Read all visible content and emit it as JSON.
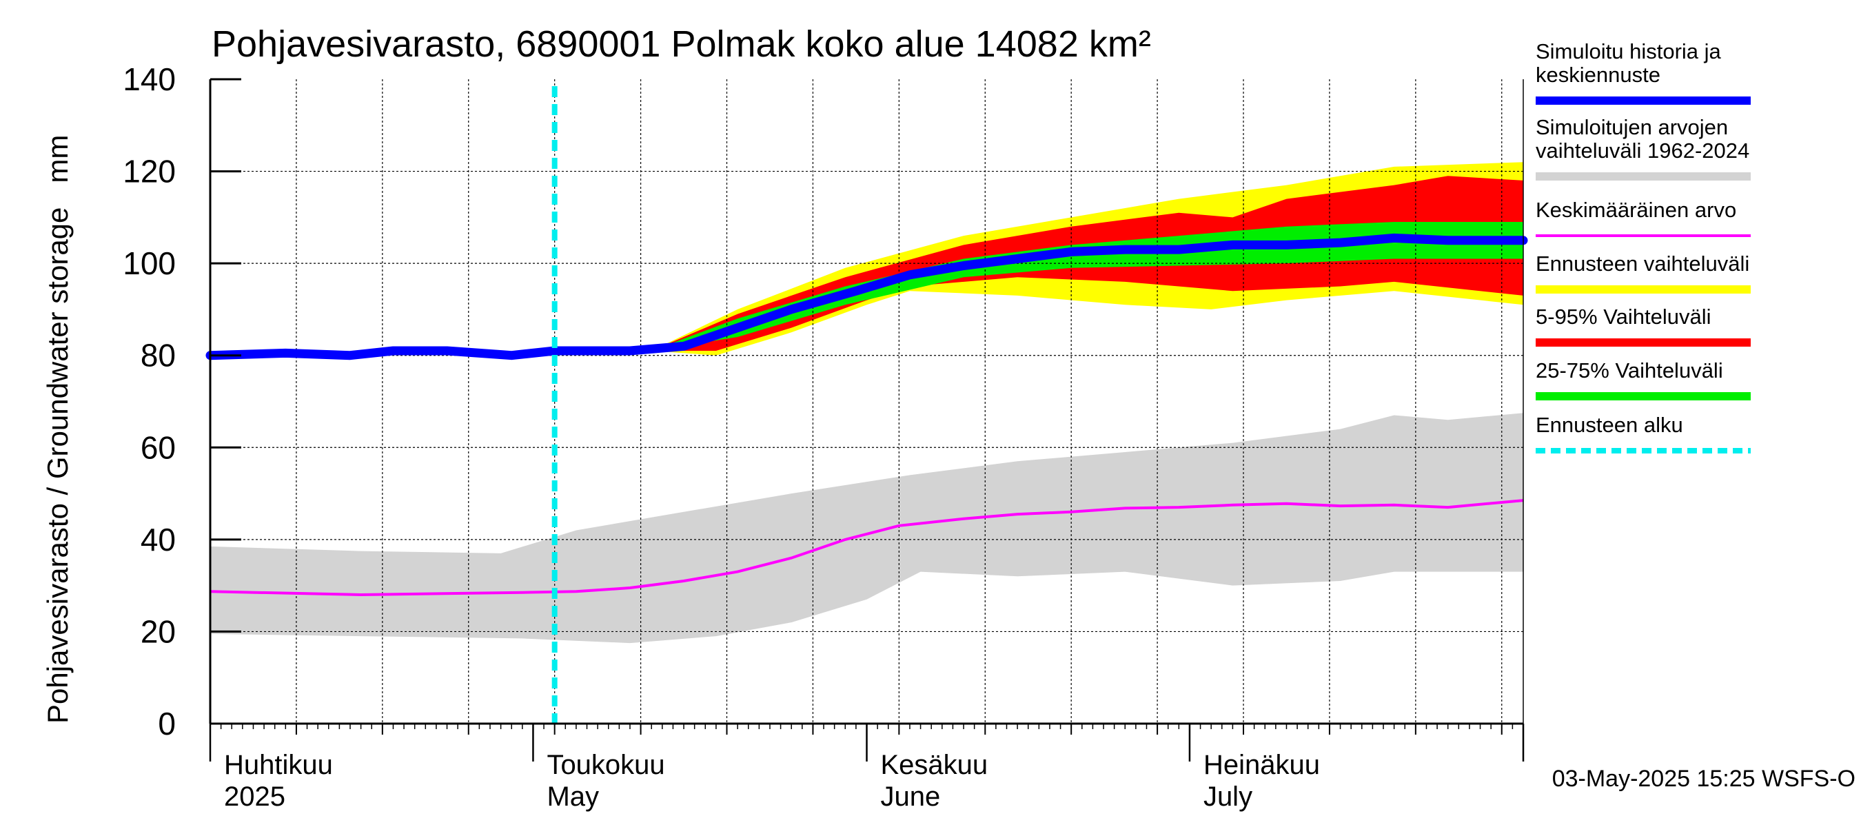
{
  "chart_data": {
    "type": "area",
    "title": "Pohjavesivarasto, 6890001 Polmak koko alue 14082 km²",
    "ylabel": "Pohjavesivarasto / Groundwater storage   mm",
    "ylim": [
      0,
      140
    ],
    "yticks": [
      0,
      20,
      40,
      60,
      80,
      100,
      120,
      140
    ],
    "ytick_labels": [
      "0",
      "20",
      "40",
      "60",
      "80",
      "100",
      "120",
      "140"
    ],
    "x_start_date": "2025-04-01",
    "x_end_date": "2025-08-01",
    "month_labels": [
      {
        "fi": "Huhtikuu",
        "en": "2025",
        "date": "2025-04-01"
      },
      {
        "fi": "Toukokuu",
        "en": "May",
        "date": "2025-05-01"
      },
      {
        "fi": "Kesäkuu",
        "en": "June",
        "date": "2025-06-01"
      },
      {
        "fi": "Heinäkuu",
        "en": "July",
        "date": "2025-07-01"
      }
    ],
    "forecast_start": "2025-05-03",
    "grid": true,
    "legend_placement": "right",
    "colors": {
      "history": "#0000ff",
      "hist_range": "#d3d3d3",
      "mean": "#ff00ff",
      "forecast_range": "#ffff00",
      "p5_95": "#ff0000",
      "p25_75": "#00ee00",
      "forecast_start": "#00eeee"
    },
    "legend": [
      {
        "key": "history",
        "lines": [
          "Simuloitu historia ja",
          "keskiennuste"
        ]
      },
      {
        "key": "hist_range",
        "lines": [
          "Simuloitujen arvojen",
          "vaihteluväli 1962-2024"
        ]
      },
      {
        "key": "mean",
        "lines": [
          "Keskimääräinen arvo"
        ]
      },
      {
        "key": "forecast_range",
        "lines": [
          "Ennusteen vaihteluväli"
        ]
      },
      {
        "key": "p5_95",
        "lines": [
          "5-95% Vaihteluväli"
        ]
      },
      {
        "key": "p25_75",
        "lines": [
          "25-75% Vaihteluväli"
        ]
      },
      {
        "key": "forecast_start",
        "lines": [
          "Ennusteen alku"
        ]
      }
    ],
    "series": [
      {
        "name": "Simuloitu historia ja keskiennuste",
        "key": "history",
        "points": [
          [
            "2025-04-01",
            80
          ],
          [
            "2025-04-08",
            80.5
          ],
          [
            "2025-04-14",
            80
          ],
          [
            "2025-04-18",
            81
          ],
          [
            "2025-04-23",
            81
          ],
          [
            "2025-04-29",
            80
          ],
          [
            "2025-05-03",
            81
          ],
          [
            "2025-05-10",
            81
          ],
          [
            "2025-05-15",
            82
          ],
          [
            "2025-05-20",
            86
          ],
          [
            "2025-05-25",
            90
          ],
          [
            "2025-05-31",
            94
          ],
          [
            "2025-06-05",
            97.5
          ],
          [
            "2025-06-10",
            99.5
          ],
          [
            "2025-06-15",
            101
          ],
          [
            "2025-06-20",
            102.5
          ],
          [
            "2025-06-25",
            103
          ],
          [
            "2025-06-30",
            103
          ],
          [
            "2025-07-05",
            104
          ],
          [
            "2025-07-10",
            104
          ],
          [
            "2025-07-15",
            104.5
          ],
          [
            "2025-07-20",
            105.5
          ],
          [
            "2025-07-25",
            105
          ],
          [
            "2025-08-01",
            105
          ]
        ]
      },
      {
        "name": "Keskimääräinen arvo",
        "key": "mean",
        "points": [
          [
            "2025-04-01",
            28.7
          ],
          [
            "2025-04-15",
            28
          ],
          [
            "2025-04-30",
            28.5
          ],
          [
            "2025-05-05",
            28.7
          ],
          [
            "2025-05-10",
            29.5
          ],
          [
            "2025-05-15",
            31
          ],
          [
            "2025-05-20",
            33
          ],
          [
            "2025-05-25",
            36
          ],
          [
            "2025-05-30",
            40
          ],
          [
            "2025-06-04",
            43
          ],
          [
            "2025-06-10",
            44.5
          ],
          [
            "2025-06-15",
            45.5
          ],
          [
            "2025-06-20",
            46
          ],
          [
            "2025-06-25",
            46.8
          ],
          [
            "2025-06-30",
            47
          ],
          [
            "2025-07-05",
            47.5
          ],
          [
            "2025-07-10",
            47.8
          ],
          [
            "2025-07-15",
            47.3
          ],
          [
            "2025-07-20",
            47.5
          ],
          [
            "2025-07-25",
            47
          ],
          [
            "2025-08-01",
            48.5
          ]
        ]
      }
    ],
    "bands": [
      {
        "name": "Simuloitujen arvojen vaihteluväli 1962-2024",
        "key": "hist_range",
        "upper": [
          [
            "2025-04-01",
            38.5
          ],
          [
            "2025-04-15",
            37.5
          ],
          [
            "2025-04-28",
            37
          ],
          [
            "2025-05-05",
            42
          ],
          [
            "2025-05-15",
            46
          ],
          [
            "2025-05-25",
            50
          ],
          [
            "2025-06-05",
            54
          ],
          [
            "2025-06-15",
            57
          ],
          [
            "2025-06-25",
            59
          ],
          [
            "2025-07-05",
            61
          ],
          [
            "2025-07-15",
            64
          ],
          [
            "2025-07-20",
            67
          ],
          [
            "2025-07-25",
            66
          ],
          [
            "2025-08-01",
            67.5
          ]
        ],
        "lower": [
          [
            "2025-04-01",
            19.5
          ],
          [
            "2025-04-15",
            19
          ],
          [
            "2025-04-30",
            18.5
          ],
          [
            "2025-05-10",
            17.5
          ],
          [
            "2025-05-18",
            19
          ],
          [
            "2025-05-25",
            22
          ],
          [
            "2025-06-01",
            27
          ],
          [
            "2025-06-06",
            33
          ],
          [
            "2025-06-15",
            32
          ],
          [
            "2025-06-25",
            33
          ],
          [
            "2025-07-05",
            30
          ],
          [
            "2025-07-15",
            31
          ],
          [
            "2025-07-20",
            33
          ],
          [
            "2025-08-01",
            33
          ]
        ]
      },
      {
        "name": "Ennusteen vaihteluväli",
        "key": "forecast_range",
        "upper": [
          [
            "2025-05-12",
            81
          ],
          [
            "2025-05-20",
            90
          ],
          [
            "2025-05-30",
            99
          ],
          [
            "2025-06-10",
            106
          ],
          [
            "2025-06-20",
            110
          ],
          [
            "2025-06-30",
            114
          ],
          [
            "2025-07-10",
            117
          ],
          [
            "2025-07-20",
            121
          ],
          [
            "2025-08-01",
            122
          ]
        ],
        "lower": [
          [
            "2025-05-12",
            81
          ],
          [
            "2025-05-18",
            80
          ],
          [
            "2025-05-25",
            85
          ],
          [
            "2025-06-01",
            91
          ],
          [
            "2025-06-05",
            94
          ],
          [
            "2025-06-15",
            93
          ],
          [
            "2025-06-25",
            91
          ],
          [
            "2025-07-03",
            90
          ],
          [
            "2025-07-10",
            92
          ],
          [
            "2025-07-20",
            94
          ],
          [
            "2025-08-01",
            91
          ]
        ]
      },
      {
        "name": "5-95% Vaihteluväli",
        "key": "p5_95",
        "upper": [
          [
            "2025-05-12",
            81
          ],
          [
            "2025-05-20",
            89
          ],
          [
            "2025-05-30",
            97
          ],
          [
            "2025-06-10",
            104
          ],
          [
            "2025-06-20",
            108
          ],
          [
            "2025-06-30",
            111
          ],
          [
            "2025-07-05",
            110
          ],
          [
            "2025-07-10",
            114
          ],
          [
            "2025-07-20",
            117
          ],
          [
            "2025-07-25",
            119
          ],
          [
            "2025-08-01",
            118
          ]
        ],
        "lower": [
          [
            "2025-05-12",
            81
          ],
          [
            "2025-05-18",
            81
          ],
          [
            "2025-05-25",
            86
          ],
          [
            "2025-06-01",
            92
          ],
          [
            "2025-06-05",
            95
          ],
          [
            "2025-06-15",
            97
          ],
          [
            "2025-06-25",
            96
          ],
          [
            "2025-07-05",
            94
          ],
          [
            "2025-07-15",
            95
          ],
          [
            "2025-07-20",
            96
          ],
          [
            "2025-08-01",
            93
          ]
        ]
      },
      {
        "name": "25-75% Vaihteluväli",
        "key": "p25_75",
        "upper": [
          [
            "2025-05-12",
            81
          ],
          [
            "2025-05-20",
            88
          ],
          [
            "2025-05-30",
            95
          ],
          [
            "2025-06-10",
            101
          ],
          [
            "2025-06-20",
            104
          ],
          [
            "2025-06-30",
            106
          ],
          [
            "2025-07-10",
            108
          ],
          [
            "2025-07-20",
            109
          ],
          [
            "2025-08-01",
            109
          ]
        ],
        "lower": [
          [
            "2025-05-12",
            81
          ],
          [
            "2025-05-20",
            84
          ],
          [
            "2025-05-30",
            91
          ],
          [
            "2025-06-10",
            97
          ],
          [
            "2025-06-20",
            99
          ],
          [
            "2025-06-30",
            99.5
          ],
          [
            "2025-07-10",
            100
          ],
          [
            "2025-07-20",
            101
          ],
          [
            "2025-08-01",
            101
          ]
        ]
      }
    ],
    "footer": "03-May-2025 15:25 WSFS-O"
  }
}
